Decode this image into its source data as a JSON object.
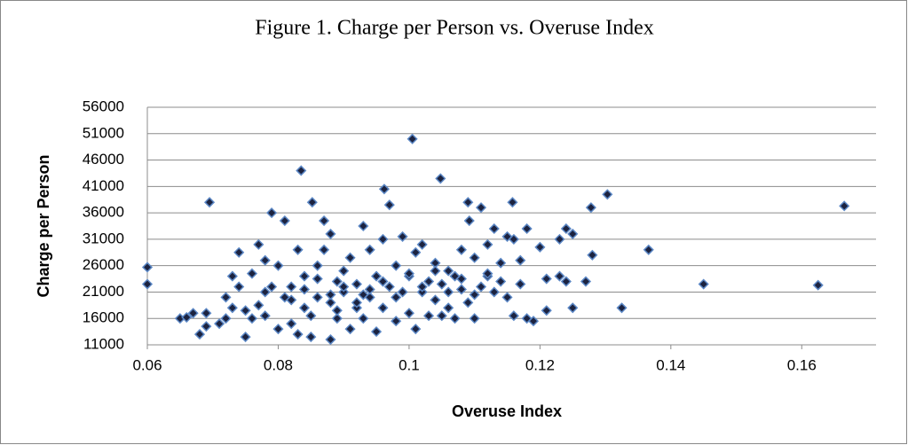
{
  "chart_data": {
    "type": "scatter",
    "title": "Figure 1. Charge per Person vs. Overuse Index",
    "x_label": "Overuse Index",
    "y_label": "Charge per Person",
    "xlim": [
      0.06,
      0.17
    ],
    "xticks": [
      0.06,
      0.08,
      0.1,
      0.12,
      0.14,
      0.16
    ],
    "ylim": [
      11000,
      56000
    ],
    "yticks": [
      11000,
      16000,
      21000,
      26000,
      31000,
      36000,
      41000,
      46000,
      51000,
      56000
    ],
    "grid": true,
    "color": "#1c2340",
    "edge_color": "#5b87c5",
    "x": [
      0.06,
      0.06,
      0.065,
      0.066,
      0.067,
      0.068,
      0.069,
      0.069,
      0.0695,
      0.071,
      0.072,
      0.072,
      0.073,
      0.073,
      0.074,
      0.074,
      0.075,
      0.075,
      0.076,
      0.077,
      0.077,
      0.078,
      0.078,
      0.079,
      0.079,
      0.08,
      0.08,
      0.081,
      0.081,
      0.082,
      0.082,
      0.083,
      0.083,
      0.0835,
      0.084,
      0.084,
      0.085,
      0.085,
      0.0852,
      0.086,
      0.086,
      0.087,
      0.087,
      0.088,
      0.088,
      0.088,
      0.089,
      0.089,
      0.09,
      0.09,
      0.091,
      0.091,
      0.092,
      0.092,
      0.093,
      0.093,
      0.094,
      0.094,
      0.095,
      0.095,
      0.096,
      0.096,
      0.0962,
      0.097,
      0.097,
      0.098,
      0.098,
      0.099,
      0.099,
      0.1,
      0.1,
      0.1005,
      0.101,
      0.101,
      0.102,
      0.102,
      0.103,
      0.103,
      0.104,
      0.104,
      0.1048,
      0.105,
      0.105,
      0.106,
      0.106,
      0.107,
      0.107,
      0.108,
      0.108,
      0.109,
      0.1092,
      0.109,
      0.11,
      0.11,
      0.111,
      0.111,
      0.112,
      0.112,
      0.113,
      0.113,
      0.114,
      0.114,
      0.115,
      0.115,
      0.1158,
      0.116,
      0.116,
      0.117,
      0.117,
      0.118,
      0.118,
      0.119,
      0.12,
      0.121,
      0.121,
      0.123,
      0.123,
      0.124,
      0.124,
      0.125,
      0.125,
      0.127,
      0.1278,
      0.128,
      0.1303,
      0.1325,
      0.1366,
      0.145,
      0.1625,
      0.1665,
      0.082,
      0.084,
      0.086,
      0.088,
      0.09,
      0.092,
      0.094,
      0.096,
      0.098,
      0.1,
      0.102,
      0.104,
      0.106,
      0.108,
      0.11,
      0.112,
      0.078,
      0.076,
      0.089,
      0.093
    ],
    "y": [
      25700,
      22500,
      16000,
      16200,
      17000,
      13000,
      14500,
      17000,
      38000,
      15000,
      16000,
      20000,
      24000,
      18000,
      22000,
      28500,
      12500,
      17500,
      16000,
      18500,
      30000,
      16500,
      27000,
      22000,
      36000,
      26000,
      14000,
      34500,
      20000,
      15000,
      22000,
      29000,
      13000,
      44000,
      18000,
      24000,
      12500,
      16500,
      38000,
      20000,
      26000,
      29000,
      34500,
      32000,
      12000,
      19000,
      23000,
      16000,
      25000,
      21000,
      14000,
      27500,
      18000,
      22500,
      33500,
      16000,
      29000,
      20000,
      24000,
      13500,
      31000,
      18000,
      40500,
      22000,
      37500,
      26000,
      15500,
      31500,
      21000,
      17000,
      24000,
      50000,
      28500,
      14000,
      21000,
      30000,
      16500,
      23000,
      19500,
      26500,
      42500,
      16500,
      22500,
      25000,
      18000,
      24000,
      16000,
      29000,
      21500,
      38000,
      34500,
      19000,
      27500,
      16000,
      37000,
      22000,
      30000,
      24000,
      21000,
      33000,
      26500,
      23000,
      31500,
      20000,
      38000,
      16500,
      31000,
      27000,
      22500,
      16000,
      33000,
      15500,
      29500,
      23500,
      17500,
      24000,
      31000,
      23000,
      33000,
      18000,
      32000,
      23000,
      37000,
      28000,
      39500,
      18000,
      29000,
      22500,
      22300,
      37300,
      19500,
      21500,
      23500,
      20500,
      22000,
      19000,
      21500,
      23000,
      20000,
      24500,
      22000,
      25000,
      21000,
      23500,
      20500,
      24500,
      21000,
      24500,
      17500,
      20500
    ]
  }
}
